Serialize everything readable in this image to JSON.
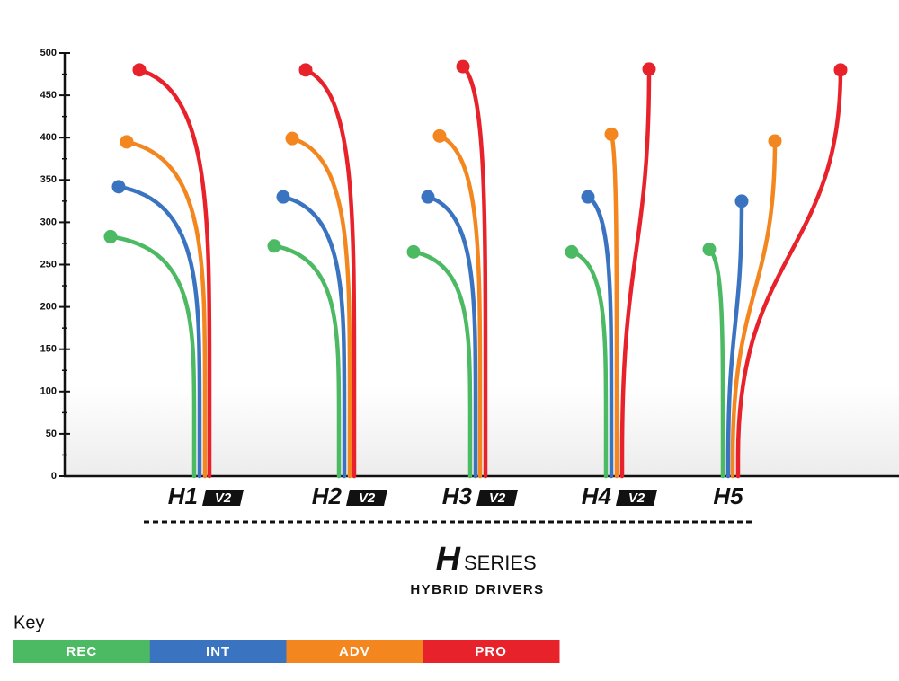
{
  "chart_data": {
    "type": "stem",
    "categories": [
      "H1",
      "H2",
      "H3",
      "H4",
      "H5"
    ],
    "category_badges": [
      "V2",
      "V2",
      "V2",
      "V2",
      null
    ],
    "series": [
      {
        "name": "REC",
        "color": "#4cb963",
        "values": [
          283,
          272,
          265,
          265,
          268
        ]
      },
      {
        "name": "INT",
        "color": "#3a74c0",
        "values": [
          342,
          330,
          330,
          330,
          325
        ]
      },
      {
        "name": "ADV",
        "color": "#f4861f",
        "values": [
          395,
          399,
          402,
          404,
          396
        ]
      },
      {
        "name": "PRO",
        "color": "#e8222b",
        "values": [
          480,
          480,
          484,
          481,
          480
        ]
      }
    ],
    "ylim": [
      0,
      500
    ],
    "yticks": [
      0,
      50,
      100,
      150,
      200,
      250,
      300,
      350,
      400,
      450,
      500
    ],
    "gridlines": [
      100,
      200,
      300,
      400
    ],
    "brand": {
      "mark": "H",
      "name": "SERIES",
      "subtitle": "HYBRID DRIVERS"
    },
    "legend_title": "Key"
  }
}
